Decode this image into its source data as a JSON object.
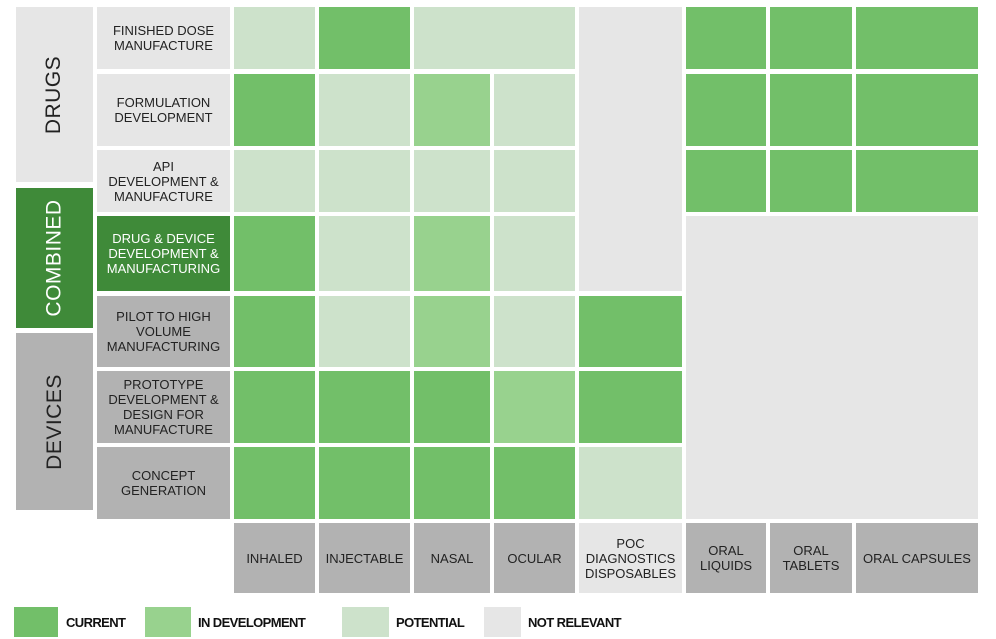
{
  "colors": {
    "current": "#72bf69",
    "in_development": "#98d28e",
    "potential": "#cde2cb",
    "not_relevant": "#e6e6e6",
    "drugs_label": "#e6e6e6",
    "combined_label": "#3f8a39",
    "devices_label": "#b2b2b2"
  },
  "categories": {
    "drugs": "DRUGS",
    "combined": "COMBINED",
    "devices": "DEVICES"
  },
  "rows": [
    "FINISHED DOSE\nMANUFACTURE",
    "FORMULATION\nDEVELOPMENT",
    "API\nDEVELOPMENT &\nMANUFACTURE",
    "DRUG & DEVICE\nDEVELOPMENT &\nMANUFACTURING",
    "PILOT TO HIGH\nVOLUME\nMANUFACTURING",
    "PROTOTYPE\nDEVELOPMENT &\nDESIGN FOR\nMANUFACTURE",
    "CONCEPT\nGENERATION"
  ],
  "columns": [
    "INHALED",
    "INJECTABLE",
    "NASAL",
    "OCULAR",
    "POC\nDIAGNOSTICS\nDISPOSABLES",
    "ORAL\nLIQUIDS",
    "ORAL\nTABLETS",
    "ORAL CAPSULES"
  ],
  "grid": {
    "finished_dose": {
      "inhaled": "potential",
      "injectable": "current",
      "nasal_ocular": "potential",
      "oral_liquids": "current",
      "oral_tablets": "current",
      "oral_capsules": "current"
    },
    "formulation": {
      "inhaled": "current",
      "injectable": "potential",
      "nasal": "in_development",
      "ocular": "potential",
      "oral_liquids": "current",
      "oral_tablets": "current",
      "oral_capsules": "current"
    },
    "api": {
      "inhaled": "potential",
      "injectable": "potential",
      "nasal": "potential",
      "ocular": "potential",
      "oral_liquids": "current",
      "oral_tablets": "current",
      "oral_capsules": "current"
    },
    "drug_device": {
      "inhaled": "current",
      "injectable": "potential",
      "nasal": "in_development",
      "ocular": "potential"
    },
    "poc_drug_rows": "not_relevant",
    "oral_device_rows": "not_relevant",
    "pilot": {
      "inhaled": "current",
      "injectable": "potential",
      "nasal": "in_development",
      "ocular": "potential",
      "poc": "current"
    },
    "prototype": {
      "inhaled": "current",
      "injectable": "current",
      "nasal": "current",
      "ocular": "in_development",
      "poc": "current"
    },
    "concept": {
      "inhaled": "current",
      "injectable": "current",
      "nasal": "current",
      "ocular": "current",
      "poc": "potential"
    }
  },
  "legend": [
    {
      "key": "current",
      "label": "CURRENT"
    },
    {
      "key": "in_development",
      "label": "IN DEVELOPMENT"
    },
    {
      "key": "potential",
      "label": "POTENTIAL"
    },
    {
      "key": "not_relevant",
      "label": "NOT RELEVANT"
    }
  ]
}
